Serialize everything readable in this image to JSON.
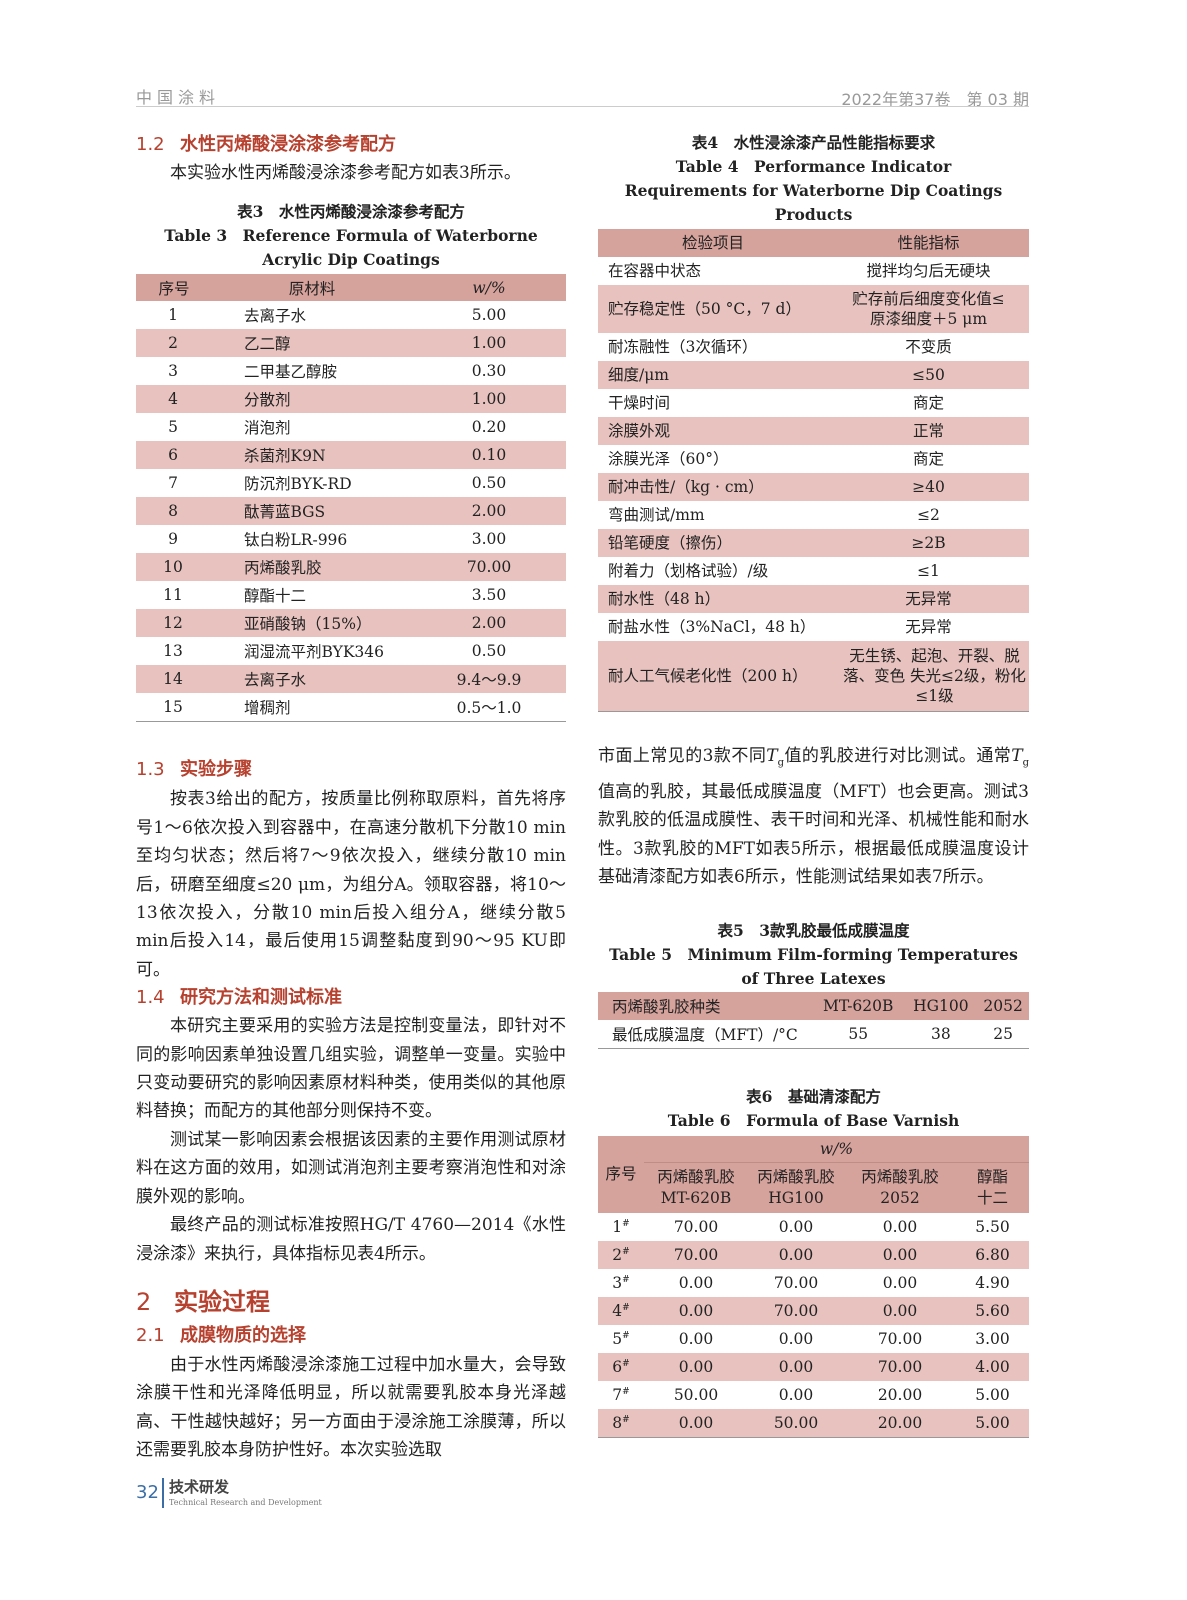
{
  "header": {
    "journal": "中国涂料",
    "issue": "2022年第37卷　第 03 期"
  },
  "left": {
    "s12": {
      "num": "1.2",
      "title": "水性丙烯酸浸涂漆参考配方",
      "para": "本实验水性丙烯酸浸涂漆参考配方如表3所示。"
    },
    "table3": {
      "cap_cn": "表3　水性丙烯酸浸涂漆参考配方",
      "cap_en": "Table 3　Reference Formula of Waterborne Acrylic Dip Coatings",
      "headers": [
        "序号",
        "原材料",
        "w/%"
      ],
      "rows": [
        [
          "1",
          "去离子水",
          "5.00"
        ],
        [
          "2",
          "乙二醇",
          "1.00"
        ],
        [
          "3",
          "二甲基乙醇胺",
          "0.30"
        ],
        [
          "4",
          "分散剂",
          "1.00"
        ],
        [
          "5",
          "消泡剂",
          "0.20"
        ],
        [
          "6",
          "杀菌剂K9N",
          "0.10"
        ],
        [
          "7",
          "防沉剂BYK-RD",
          "0.50"
        ],
        [
          "8",
          "酞菁蓝BGS",
          "2.00"
        ],
        [
          "9",
          "钛白粉LR-996",
          "3.00"
        ],
        [
          "10",
          "丙烯酸乳胶",
          "70.00"
        ],
        [
          "11",
          "醇酯十二",
          "3.50"
        ],
        [
          "12",
          "亚硝酸钠（15%）",
          "2.00"
        ],
        [
          "13",
          "润湿流平剂BYK346",
          "0.50"
        ],
        [
          "14",
          "去离子水",
          "9.4～9.9"
        ],
        [
          "15",
          "增稠剂",
          "0.5～1.0"
        ]
      ]
    },
    "s13": {
      "num": "1.3",
      "title": "实验步骤",
      "para": "按表3给出的配方，按质量比例称取原料，首先将序号1～6依次投入到容器中，在高速分散机下分散10 min至均匀状态；然后将7～9依次投入，继续分散10 min后，研磨至细度≤20 μm，为组分A。领取容器，将10～13依次投入，分散10 min后投入组分A，继续分散5 min后投入14，最后使用15调整黏度到90～95 KU即可。"
    },
    "s14": {
      "num": "1.4",
      "title": "研究方法和测试标准",
      "paras": [
        "本研究主要采用的实验方法是控制变量法，即针对不同的影响因素单独设置几组实验，调整单一变量。实验中只变动要研究的影响因素原材料种类，使用类似的其他原料替换；而配方的其他部分则保持不变。",
        "测试某一影响因素会根据该因素的主要作用测试原材料在这方面的效用，如测试消泡剂主要考察消泡性和对涂膜外观的影响。",
        "最终产品的测试标准按照HG/T 4760—2014《水性浸涂漆》来执行，具体指标见表4所示。"
      ]
    },
    "s2": {
      "num": "2",
      "title": "实验过程"
    },
    "s21": {
      "num": "2.1",
      "title": "成膜物质的选择",
      "para": "由于水性丙烯酸浸涂漆施工过程中加水量大，会导致涂膜干性和光泽降低明显，所以就需要乳胶本身光泽越高、干性越快越好；另一方面由于浸涂施工涂膜薄，所以还需要乳胶本身防护性好。本次实验选取"
    }
  },
  "right": {
    "table4": {
      "cap_cn": "表4　水性浸涂漆产品性能指标要求",
      "cap_en": "Table 4　Performance Indicator Requirements for Waterborne Dip Coatings Products",
      "headers": [
        "检验项目",
        "性能指标"
      ],
      "rows": [
        [
          "在容器中状态",
          "搅拌均匀后无硬块"
        ],
        [
          "贮存稳定性（50 °C，7 d）",
          "贮存前后细度变化值≤原漆细度＋5 μm"
        ],
        [
          "耐冻融性（3次循环）",
          "不变质"
        ],
        [
          "细度/μm",
          "≤50"
        ],
        [
          "干燥时间",
          "商定"
        ],
        [
          "涂膜外观",
          "正常"
        ],
        [
          "涂膜光泽（60°）",
          "商定"
        ],
        [
          "耐冲击性/（kg · cm）",
          "≥40"
        ],
        [
          "弯曲测试/mm",
          "≤2"
        ],
        [
          "铅笔硬度（擦伤）",
          "≥2B"
        ],
        [
          "附着力（划格试验）/级",
          "≤1"
        ],
        [
          "耐水性（48 h）",
          "无异常"
        ],
        [
          "耐盐水性（3%NaCl，48 h）",
          "无异常"
        ],
        [
          "耐人工气候老化性（200 h）",
          "无生锈、起泡、开裂、脱落、变色 失光≤2级，粉化≤1级"
        ]
      ]
    },
    "para": {
      "p1": "市面上常见的3款不同",
      "t": "T",
      "g": "g",
      "p2": "值的乳胶进行对比测试。通常",
      "p3": "值高的乳胶，其最低成膜温度（MFT）也会更高。测试3款乳胶的低温成膜性、表干时间和光泽、机械性能和耐水性。3款乳胶的MFT如表5所示，根据最低成膜温度设计基础清漆配方如表6所示，性能测试结果如表7所示。"
    },
    "table5": {
      "cap_cn": "表5　3款乳胶最低成膜温度",
      "cap_en": "Table 5　Minimum Film-forming Temperatures of Three Latexes",
      "headers": [
        "丙烯酸乳胶种类",
        "MT-620B",
        "HG100",
        "2052"
      ],
      "row": [
        "最低成膜温度（MFT）/°C",
        "55",
        "38",
        "25"
      ]
    },
    "table6": {
      "cap_cn": "表6　基础清漆配方",
      "cap_en": "Table 6　Formula of Base Varnish",
      "h_no": "序号",
      "h_group": "w/%",
      "headers": [
        "丙烯酸乳胶 MT-620B",
        "丙烯酸乳胶HG100",
        "丙烯酸乳胶 2052",
        "醇酯十二"
      ],
      "mark": "#",
      "rows": [
        [
          "1",
          "70.00",
          "0.00",
          "0.00",
          "5.50"
        ],
        [
          "2",
          "70.00",
          "0.00",
          "0.00",
          "6.80"
        ],
        [
          "3",
          "0.00",
          "70.00",
          "0.00",
          "4.90"
        ],
        [
          "4",
          "0.00",
          "70.00",
          "0.00",
          "5.60"
        ],
        [
          "5",
          "0.00",
          "0.00",
          "70.00",
          "3.00"
        ],
        [
          "6",
          "0.00",
          "0.00",
          "70.00",
          "4.00"
        ],
        [
          "7",
          "50.00",
          "0.00",
          "20.00",
          "5.00"
        ],
        [
          "8",
          "0.00",
          "50.00",
          "20.00",
          "5.00"
        ]
      ]
    }
  },
  "footer": {
    "page": "32",
    "section": "技术研发",
    "section_en": "Technical Research and Development"
  },
  "colors": {
    "heading": "#b7412f",
    "table_header": "#d5a29c",
    "table_stripe": "#e7c2be",
    "footer": "#3a6ea5"
  }
}
